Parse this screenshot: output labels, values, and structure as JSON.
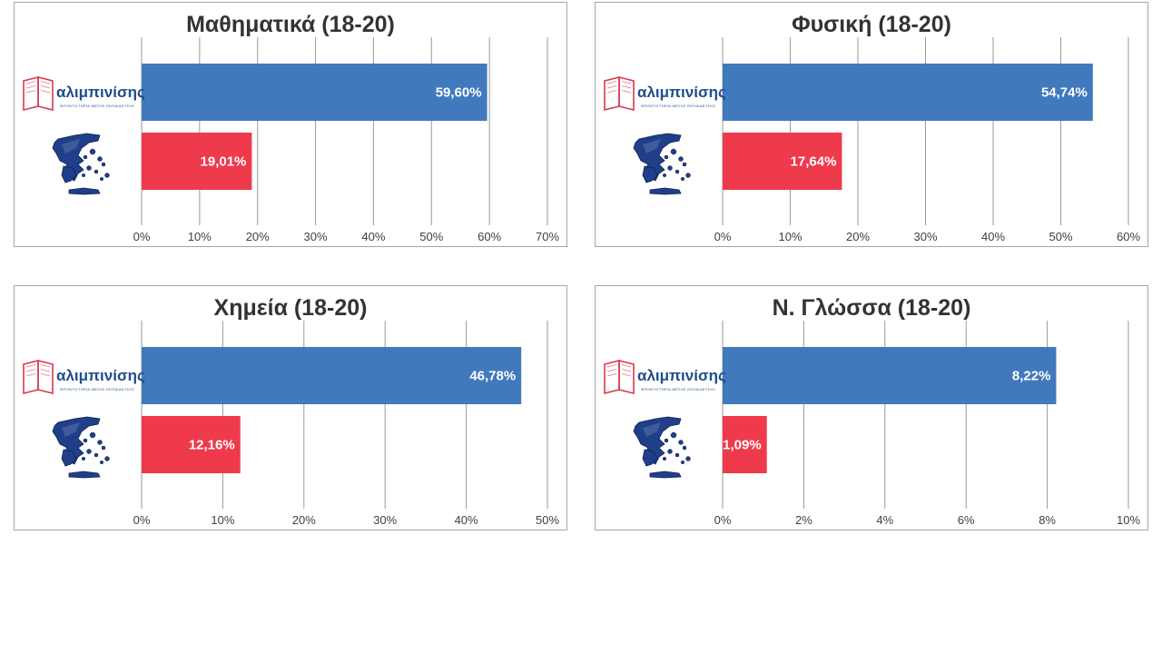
{
  "colors": {
    "bar_school": "#4179bd",
    "bar_national": "#ee3a4b",
    "grid": "#9a9a9a",
    "border": "#a6a6a6",
    "title": "#333333",
    "logo_blue": "#1f4e8c",
    "logo_red": "#d83a4a",
    "map_blue": "#1f3f8a"
  },
  "logo": {
    "name": "αλιμπινίσης",
    "tagline": "ΦΡΟΝΤΙΣΤΗΡΙΑ ΜΕΣΗΣ ΕΚΠΑΙΔΕΥΣΗΣ"
  },
  "chart_data": [
    {
      "type": "bar",
      "orientation": "horizontal",
      "title": "Μαθηματικά (18-20)",
      "series": [
        {
          "icon": "alimpinisis-logo",
          "value": 59.6,
          "label": "59,60%"
        },
        {
          "icon": "greece-map-icon",
          "value": 19.01,
          "label": "19,01%"
        }
      ],
      "xlim": [
        0,
        70
      ],
      "xticks": [
        "0%",
        "10%",
        "20%",
        "30%",
        "40%",
        "50%",
        "60%",
        "70%"
      ],
      "grid": true
    },
    {
      "type": "bar",
      "orientation": "horizontal",
      "title": "Φυσική (18-20)",
      "series": [
        {
          "icon": "alimpinisis-logo",
          "value": 54.74,
          "label": "54,74%"
        },
        {
          "icon": "greece-map-icon",
          "value": 17.64,
          "label": "17,64%"
        }
      ],
      "xlim": [
        0,
        60
      ],
      "xticks": [
        "0%",
        "10%",
        "20%",
        "30%",
        "40%",
        "50%",
        "60%"
      ],
      "grid": true
    },
    {
      "type": "bar",
      "orientation": "horizontal",
      "title": "Χημεία (18-20)",
      "series": [
        {
          "icon": "alimpinisis-logo",
          "value": 46.78,
          "label": "46,78%"
        },
        {
          "icon": "greece-map-icon",
          "value": 12.16,
          "label": "12,16%"
        }
      ],
      "xlim": [
        0,
        50
      ],
      "xticks": [
        "0%",
        "10%",
        "20%",
        "30%",
        "40%",
        "50%"
      ],
      "grid": true
    },
    {
      "type": "bar",
      "orientation": "horizontal",
      "title": "Ν. Γλώσσα (18-20)",
      "series": [
        {
          "icon": "alimpinisis-logo",
          "value": 8.22,
          "label": "8,22%"
        },
        {
          "icon": "greece-map-icon",
          "value": 1.09,
          "label": "1,09%"
        }
      ],
      "xlim": [
        0,
        10
      ],
      "xticks": [
        "0%",
        "2%",
        "4%",
        "6%",
        "8%",
        "10%"
      ],
      "grid": true
    }
  ]
}
